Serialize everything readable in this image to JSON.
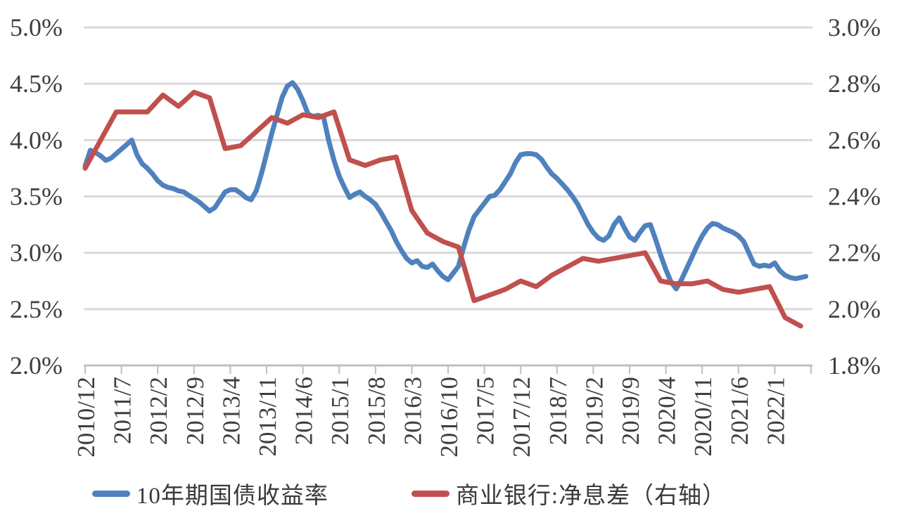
{
  "chart_data": {
    "type": "line",
    "title": "",
    "x_axis": {
      "start": "2010/12",
      "end": "2022/7",
      "tick_labels": [
        "2010/12",
        "2011/7",
        "2012/2",
        "2012/9",
        "2013/4",
        "2013/11",
        "2014/6",
        "2015/1",
        "2015/8",
        "2016/3",
        "2016/10",
        "2017/5",
        "2017/12",
        "2018/7",
        "2019/2",
        "2019/9",
        "2020/4",
        "2020/11",
        "2021/6",
        "2022/1"
      ],
      "tick_interval_months": 7,
      "label_rotation_degrees": 90
    },
    "left_axis": {
      "tick_labels": [
        "5.0%",
        "4.5%",
        "4.0%",
        "3.5%",
        "3.0%",
        "2.5%",
        "2.0%"
      ],
      "min": 2.0,
      "max": 5.0,
      "step": 0.5,
      "grid": true
    },
    "right_axis": {
      "tick_labels": [
        "3.0%",
        "2.8%",
        "2.6%",
        "2.4%",
        "2.2%",
        "2.0%",
        "1.8%"
      ],
      "min": 1.8,
      "max": 3.0,
      "step": 0.2,
      "grid": false
    },
    "series": [
      {
        "name": "10年期国债收益率",
        "axis": "left",
        "color": "#4F81BD",
        "frequency": "monthly",
        "start_month_index": 0,
        "month_step": 1,
        "values": [
          3.77,
          3.91,
          3.89,
          3.86,
          3.82,
          3.84,
          3.88,
          3.92,
          3.96,
          4.0,
          3.87,
          3.79,
          3.75,
          3.7,
          3.64,
          3.6,
          3.58,
          3.57,
          3.55,
          3.54,
          3.51,
          3.48,
          3.45,
          3.41,
          3.37,
          3.4,
          3.47,
          3.54,
          3.56,
          3.56,
          3.53,
          3.49,
          3.47,
          3.55,
          3.7,
          3.88,
          4.06,
          4.22,
          4.38,
          4.48,
          4.51,
          4.45,
          4.35,
          4.23,
          4.21,
          4.22,
          4.2,
          3.99,
          3.82,
          3.68,
          3.58,
          3.49,
          3.52,
          3.54,
          3.5,
          3.47,
          3.43,
          3.36,
          3.28,
          3.2,
          3.1,
          3.02,
          2.95,
          2.91,
          2.93,
          2.88,
          2.87,
          2.9,
          2.84,
          2.79,
          2.76,
          2.82,
          2.88,
          3.05,
          3.2,
          3.32,
          3.38,
          3.44,
          3.5,
          3.51,
          3.56,
          3.63,
          3.7,
          3.8,
          3.87,
          3.88,
          3.88,
          3.87,
          3.83,
          3.76,
          3.7,
          3.66,
          3.61,
          3.56,
          3.5,
          3.43,
          3.34,
          3.25,
          3.18,
          3.13,
          3.11,
          3.15,
          3.25,
          3.31,
          3.22,
          3.14,
          3.11,
          3.18,
          3.24,
          3.25,
          3.12,
          2.98,
          2.85,
          2.74,
          2.68,
          2.76,
          2.86,
          2.96,
          3.06,
          3.15,
          3.22,
          3.26,
          3.25,
          3.22,
          3.2,
          3.18,
          3.15,
          3.1,
          3.0,
          2.9,
          2.88,
          2.89,
          2.88,
          2.91,
          2.84,
          2.8,
          2.78,
          2.77,
          2.78,
          2.79
        ]
      },
      {
        "name": "商业银行:净息差（右轴）",
        "axis": "right",
        "color": "#C0504D",
        "frequency": "quarterly",
        "start_month_index": 0,
        "month_step": 3,
        "values": [
          2.5,
          2.6,
          2.7,
          2.7,
          2.7,
          2.76,
          2.72,
          2.77,
          2.75,
          2.57,
          2.58,
          2.63,
          2.68,
          2.66,
          2.69,
          2.68,
          2.7,
          2.53,
          2.51,
          2.53,
          2.54,
          2.35,
          2.27,
          2.24,
          2.22,
          2.03,
          2.05,
          2.07,
          2.1,
          2.08,
          2.12,
          2.15,
          2.18,
          2.17,
          2.18,
          2.19,
          2.2,
          2.1,
          2.09,
          2.09,
          2.1,
          2.07,
          2.06,
          2.07,
          2.08,
          1.97,
          1.94
        ]
      }
    ],
    "style": {
      "background": "#FFFFFF",
      "gridline_color": "#D9D9D9",
      "axis_line_color": "#BFBFBF",
      "axis_text_color": "#3F3F3F",
      "line_width": 7
    },
    "legend_position": "bottom"
  },
  "legend": {
    "items": [
      {
        "label": "10年期国债收益率",
        "color": "#4F81BD"
      },
      {
        "label": "商业银行:净息差（右轴）",
        "color": "#C0504D"
      }
    ]
  }
}
